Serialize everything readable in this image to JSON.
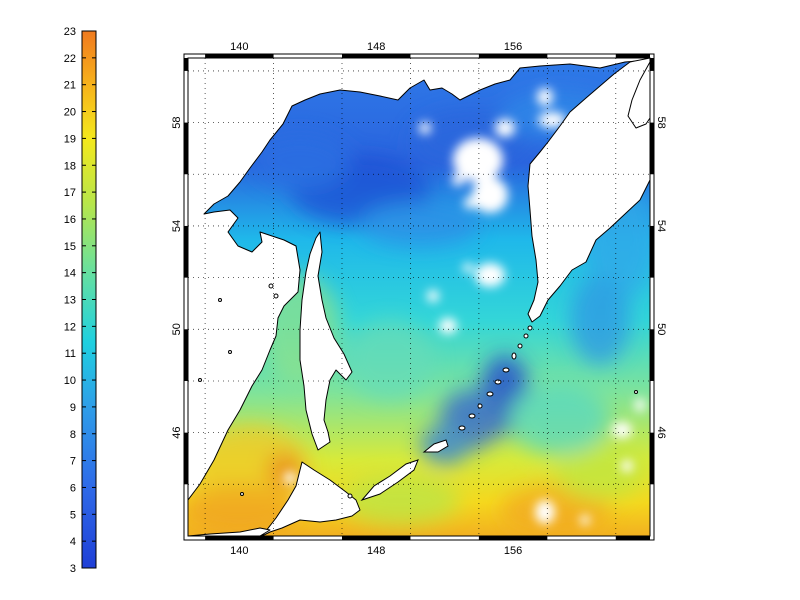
{
  "colorbar": {
    "min": 3,
    "max": 23,
    "ticks": [
      "3",
      "4",
      "5",
      "6",
      "7",
      "8",
      "9",
      "10",
      "11",
      "12",
      "13",
      "14",
      "15",
      "16",
      "17",
      "18",
      "19",
      "20",
      "21",
      "22",
      "23"
    ],
    "colormap": "jet-like (blue to cyan to green to yellow to orange)",
    "colors": [
      "#1f3fd6",
      "#2f6ae8",
      "#2f9ee8",
      "#1fd0e0",
      "#66e0a0",
      "#b8e64a",
      "#f4e81c",
      "#f7b21b",
      "#f07a1f"
    ]
  },
  "map": {
    "x_ticks_top": [
      "140",
      "148",
      "156"
    ],
    "x_ticks_bottom": [
      "140",
      "148",
      "156"
    ],
    "y_ticks_left": [
      "58",
      "54",
      "50",
      "46"
    ],
    "y_ticks_right": [
      "58",
      "54",
      "50",
      "46"
    ],
    "lon_range": [
      137.0,
      164.0
    ],
    "lat_range": [
      42.0,
      60.5
    ],
    "grid": "dotted",
    "land_color": "#ffffff",
    "coast_color": "#000000"
  }
}
